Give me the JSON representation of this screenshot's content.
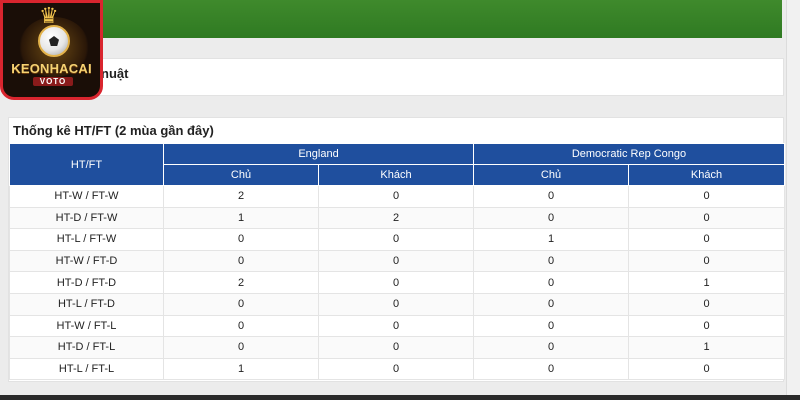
{
  "top_section": {
    "title_fragment": "nuật"
  },
  "logo": {
    "wordmark": "KEONHACAI",
    "sub": "VOTO"
  },
  "stats": {
    "title": "Thống kê HT/FT (2 mùa gần đây)",
    "row_header": "HT/FT",
    "teams": [
      "England",
      "Democratic Rep Congo"
    ],
    "sub_headers": [
      "Chủ",
      "Khách",
      "Chủ",
      "Khách"
    ],
    "rows": [
      {
        "label": "HT-W / FT-W",
        "values": [
          "2",
          "0",
          "0",
          "0"
        ]
      },
      {
        "label": "HT-D / FT-W",
        "values": [
          "1",
          "2",
          "0",
          "0"
        ]
      },
      {
        "label": "HT-L / FT-W",
        "values": [
          "0",
          "0",
          "1",
          "0"
        ]
      },
      {
        "label": "HT-W / FT-D",
        "values": [
          "0",
          "0",
          "0",
          "0"
        ]
      },
      {
        "label": "HT-D / FT-D",
        "values": [
          "2",
          "0",
          "0",
          "1"
        ]
      },
      {
        "label": "HT-L / FT-D",
        "values": [
          "0",
          "0",
          "0",
          "0"
        ]
      },
      {
        "label": "HT-W / FT-L",
        "values": [
          "0",
          "0",
          "0",
          "0"
        ]
      },
      {
        "label": "HT-D / FT-L",
        "values": [
          "0",
          "0",
          "0",
          "1"
        ]
      },
      {
        "label": "HT-L / FT-L",
        "values": [
          "1",
          "0",
          "0",
          "0"
        ]
      }
    ]
  },
  "colors": {
    "header_blue": "#1f4f9e",
    "badge_red": "#d9252e",
    "pitch_green": "#3f8a2c"
  }
}
